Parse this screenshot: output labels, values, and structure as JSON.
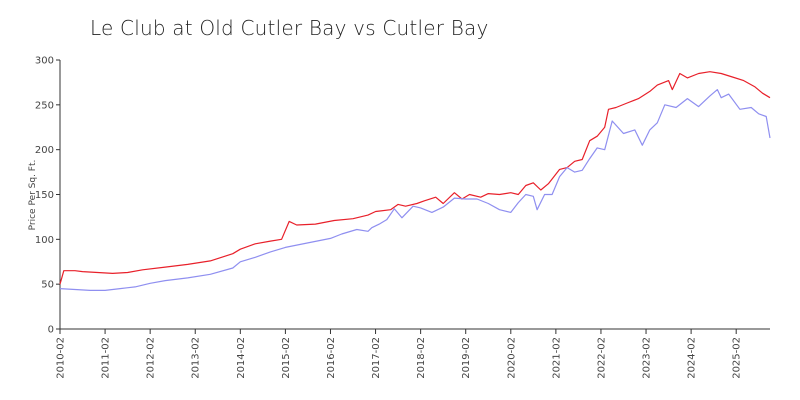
{
  "chart_data": {
    "type": "line",
    "title": "Le Club at Old Cutler Bay vs Cutler Bay",
    "xlabel": "",
    "ylabel": "Price Per Sq. Ft.",
    "ylim": [
      0,
      300
    ],
    "yticks": [
      0,
      50,
      100,
      150,
      200,
      250,
      300
    ],
    "xticks": [
      "2010-02",
      "2011-02",
      "2012-02",
      "2013-02",
      "2014-02",
      "2015-02",
      "2016-02",
      "2017-02",
      "2018-02",
      "2019-02",
      "2020-02",
      "2021-02",
      "2022-02",
      "2023-02",
      "2024-02",
      "2025-02"
    ],
    "x_start": "2010-02",
    "x_end": "2025-11",
    "grid": false,
    "legend": "none",
    "series": [
      {
        "color": "#e8202a",
        "points": [
          [
            "2010-02",
            50
          ],
          [
            "2010-03",
            65
          ],
          [
            "2010-06",
            65
          ],
          [
            "2010-08",
            64
          ],
          [
            "2010-12",
            63
          ],
          [
            "2011-04",
            62
          ],
          [
            "2011-08",
            63
          ],
          [
            "2011-12",
            66
          ],
          [
            "2012-06",
            69
          ],
          [
            "2012-12",
            72
          ],
          [
            "2013-06",
            76
          ],
          [
            "2013-12",
            84
          ],
          [
            "2014-02",
            89
          ],
          [
            "2014-06",
            95
          ],
          [
            "2014-10",
            98
          ],
          [
            "2015-01",
            100
          ],
          [
            "2015-03",
            120
          ],
          [
            "2015-05",
            116
          ],
          [
            "2015-10",
            117
          ],
          [
            "2016-03",
            121
          ],
          [
            "2016-08",
            123
          ],
          [
            "2016-12",
            127
          ],
          [
            "2017-02",
            131
          ],
          [
            "2017-06",
            133
          ],
          [
            "2017-08",
            139
          ],
          [
            "2017-10",
            137
          ],
          [
            "2018-01",
            140
          ],
          [
            "2018-03",
            143
          ],
          [
            "2018-06",
            147
          ],
          [
            "2018-08",
            140
          ],
          [
            "2018-11",
            152
          ],
          [
            "2019-01",
            145
          ],
          [
            "2019-03",
            150
          ],
          [
            "2019-06",
            147
          ],
          [
            "2019-08",
            151
          ],
          [
            "2019-11",
            150
          ],
          [
            "2020-02",
            152
          ],
          [
            "2020-04",
            150
          ],
          [
            "2020-06",
            160
          ],
          [
            "2020-08",
            163
          ],
          [
            "2020-10",
            155
          ],
          [
            "2020-12",
            162
          ],
          [
            "2021-03",
            178
          ],
          [
            "2021-05",
            180
          ],
          [
            "2021-07",
            187
          ],
          [
            "2021-09",
            189
          ],
          [
            "2021-11",
            210
          ],
          [
            "2022-01",
            215
          ],
          [
            "2022-03",
            225
          ],
          [
            "2022-04",
            245
          ],
          [
            "2022-06",
            247
          ],
          [
            "2022-09",
            252
          ],
          [
            "2022-12",
            257
          ],
          [
            "2023-03",
            265
          ],
          [
            "2023-05",
            272
          ],
          [
            "2023-08",
            277
          ],
          [
            "2023-09",
            267
          ],
          [
            "2023-11",
            285
          ],
          [
            "2024-01",
            280
          ],
          [
            "2024-04",
            285
          ],
          [
            "2024-07",
            287
          ],
          [
            "2024-10",
            285
          ],
          [
            "2025-01",
            281
          ],
          [
            "2025-04",
            277
          ],
          [
            "2025-07",
            270
          ],
          [
            "2025-09",
            263
          ],
          [
            "2025-11",
            258
          ]
        ]
      },
      {
        "color": "#8f8ff0",
        "points": [
          [
            "2010-02",
            45
          ],
          [
            "2010-06",
            44
          ],
          [
            "2010-10",
            43
          ],
          [
            "2011-02",
            43
          ],
          [
            "2011-06",
            45
          ],
          [
            "2011-10",
            47
          ],
          [
            "2012-02",
            51
          ],
          [
            "2012-06",
            54
          ],
          [
            "2012-12",
            57
          ],
          [
            "2013-06",
            61
          ],
          [
            "2013-12",
            68
          ],
          [
            "2014-02",
            75
          ],
          [
            "2014-06",
            80
          ],
          [
            "2014-10",
            86
          ],
          [
            "2015-02",
            91
          ],
          [
            "2015-08",
            96
          ],
          [
            "2016-02",
            101
          ],
          [
            "2016-05",
            106
          ],
          [
            "2016-09",
            111
          ],
          [
            "2016-12",
            109
          ],
          [
            "2017-01",
            113
          ],
          [
            "2017-03",
            117
          ],
          [
            "2017-05",
            122
          ],
          [
            "2017-07",
            134
          ],
          [
            "2017-09",
            124
          ],
          [
            "2017-12",
            137
          ],
          [
            "2018-02",
            135
          ],
          [
            "2018-05",
            130
          ],
          [
            "2018-08",
            136
          ],
          [
            "2018-11",
            146
          ],
          [
            "2019-02",
            145
          ],
          [
            "2019-05",
            145
          ],
          [
            "2019-08",
            140
          ],
          [
            "2019-11",
            133
          ],
          [
            "2020-02",
            130
          ],
          [
            "2020-04",
            141
          ],
          [
            "2020-06",
            150
          ],
          [
            "2020-08",
            148
          ],
          [
            "2020-09",
            133
          ],
          [
            "2020-11",
            150
          ],
          [
            "2021-01",
            150
          ],
          [
            "2021-03",
            170
          ],
          [
            "2021-05",
            180
          ],
          [
            "2021-07",
            175
          ],
          [
            "2021-09",
            177
          ],
          [
            "2021-11",
            190
          ],
          [
            "2022-01",
            202
          ],
          [
            "2022-03",
            200
          ],
          [
            "2022-05",
            232
          ],
          [
            "2022-08",
            218
          ],
          [
            "2022-11",
            222
          ],
          [
            "2023-01",
            205
          ],
          [
            "2023-03",
            222
          ],
          [
            "2023-05",
            230
          ],
          [
            "2023-07",
            250
          ],
          [
            "2023-10",
            247
          ],
          [
            "2024-01",
            257
          ],
          [
            "2024-04",
            248
          ],
          [
            "2024-07",
            260
          ],
          [
            "2024-09",
            267
          ],
          [
            "2024-10",
            258
          ],
          [
            "2024-12",
            262
          ],
          [
            "2025-03",
            245
          ],
          [
            "2025-06",
            247
          ],
          [
            "2025-08",
            240
          ],
          [
            "2025-10",
            237
          ],
          [
            "2025-11",
            213
          ]
        ]
      }
    ]
  }
}
